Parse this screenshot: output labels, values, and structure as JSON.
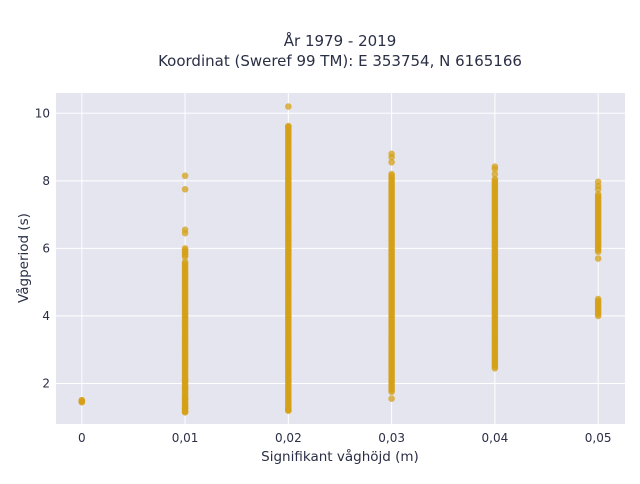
{
  "chart_data": {
    "type": "scatter",
    "title_lines": [
      "År 1979 - 2019",
      "Koordinat (Sweref 99 TM): E 353754, N 6165166"
    ],
    "xlabel": "Signifikant våghöjd (m)",
    "ylabel": "Vågperiod (s)",
    "x_ticks": [
      0,
      0.01,
      0.02,
      0.03,
      0.04,
      0.05
    ],
    "x_tick_labels": [
      "0",
      "0,01",
      "0,02",
      "0,03",
      "0,04",
      "0,05"
    ],
    "y_ticks": [
      2,
      4,
      6,
      8,
      10
    ],
    "y_tick_labels": [
      "2",
      "4",
      "6",
      "8",
      "10"
    ],
    "xlim": [
      -0.0025,
      0.0526
    ],
    "ylim": [
      0.8,
      10.6
    ],
    "grid": true,
    "colors": {
      "points": "#D4A017",
      "plot_bg": "#E5E5F0",
      "grid": "#ffffff"
    },
    "series": [
      {
        "x": 0,
        "ranges": [
          [
            1.45,
            1.52
          ]
        ],
        "points": [
          1.45,
          1.5
        ]
      },
      {
        "x": 0.01,
        "ranges": [
          [
            1.15,
            2.1
          ],
          [
            2.1,
            5.6
          ],
          [
            5.75,
            6.0
          ]
        ],
        "points": [
          1.15,
          1.25,
          1.35,
          1.55,
          1.85,
          6.45,
          6.55,
          7.75,
          8.15
        ]
      },
      {
        "x": 0.02,
        "ranges": [
          [
            1.2,
            9.6
          ]
        ],
        "points": [
          1.2,
          1.25,
          9.62,
          10.2
        ]
      },
      {
        "x": 0.03,
        "ranges": [
          [
            1.75,
            8.2
          ]
        ],
        "points": [
          1.55,
          8.55,
          8.7,
          8.8
        ]
      },
      {
        "x": 0.04,
        "ranges": [
          [
            2.45,
            8.05
          ]
        ],
        "points": [
          8.2,
          8.35,
          8.42
        ]
      },
      {
        "x": 0.05,
        "ranges": [
          [
            4.0,
            4.5
          ],
          [
            5.9,
            7.6
          ]
        ],
        "points": [
          5.7,
          7.75,
          7.85,
          7.97
        ]
      }
    ]
  }
}
